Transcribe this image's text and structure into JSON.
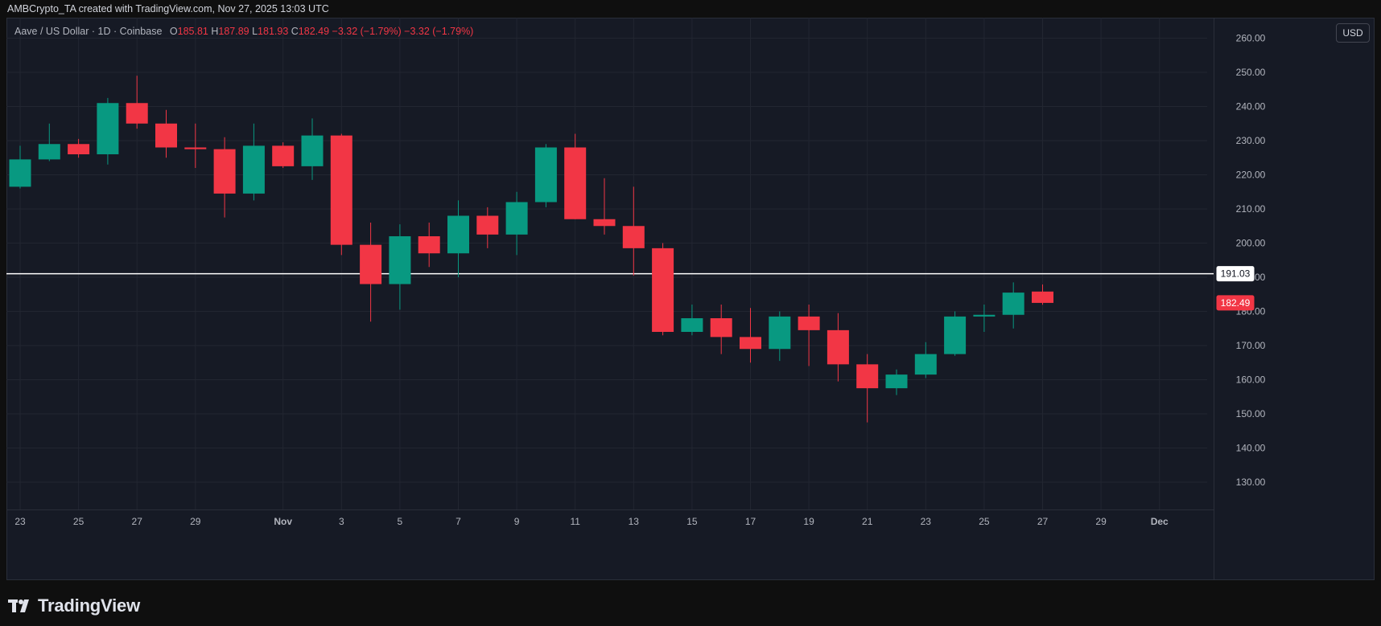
{
  "header": {
    "attribution": "AMBCrypto_TA created with TradingView.com, Nov 27, 2025 13:03 UTC"
  },
  "legend": {
    "symbol": "Aave / US Dollar · 1D · Coinbase",
    "o_label": "O",
    "o_value": "185.81",
    "h_label": "H",
    "h_value": "187.89",
    "l_label": "L",
    "l_value": "181.93",
    "c_label": "C",
    "c_value": "182.49",
    "change": "−3.32 (−1.79%)",
    "change2": "−3.32 (−1.79%)"
  },
  "currency_button": "USD",
  "footer": {
    "brand": "TradingView"
  },
  "colors": {
    "up": "#089981",
    "down": "#f23645",
    "background": "#161a25",
    "grid": "#222631",
    "line": "#ffffff"
  },
  "chart_data": {
    "type": "candlestick",
    "title": "Aave / US Dollar · 1D · Coinbase",
    "currency": "USD",
    "ylim": [
      122,
      266
    ],
    "y_ticks": [
      "130.00",
      "140.00",
      "150.00",
      "160.00",
      "170.00",
      "180.00",
      "190.00",
      "200.00",
      "210.00",
      "220.00",
      "230.00",
      "240.00",
      "250.00",
      "260.00"
    ],
    "y_tick_values": [
      130,
      140,
      150,
      160,
      170,
      180,
      190,
      200,
      210,
      220,
      230,
      240,
      250,
      260
    ],
    "x_ticks": [
      "23",
      "25",
      "27",
      "29",
      "Nov",
      "3",
      "5",
      "7",
      "9",
      "11",
      "13",
      "15",
      "17",
      "19",
      "21",
      "23",
      "25",
      "27",
      "29",
      "Dec"
    ],
    "x_tick_days": [
      0,
      2,
      4,
      6,
      9,
      11,
      13,
      15,
      17,
      19,
      21,
      23,
      25,
      27,
      29,
      31,
      33,
      35,
      37,
      39
    ],
    "grid": true,
    "dates": [
      "Oct 23",
      "Oct 24",
      "Oct 25",
      "Oct 26",
      "Oct 27",
      "Oct 28",
      "Oct 29",
      "Oct 30",
      "Oct 31",
      "Nov 1",
      "Nov 2",
      "Nov 3",
      "Nov 4",
      "Nov 5",
      "Nov 6",
      "Nov 7",
      "Nov 8",
      "Nov 9",
      "Nov 10",
      "Nov 11",
      "Nov 12",
      "Nov 13",
      "Nov 14",
      "Nov 15",
      "Nov 16",
      "Nov 17",
      "Nov 18",
      "Nov 19",
      "Nov 20",
      "Nov 21",
      "Nov 22",
      "Nov 23",
      "Nov 24",
      "Nov 25",
      "Nov 26",
      "Nov 27"
    ],
    "open": [
      216.5,
      224.5,
      229.0,
      226.0,
      241.0,
      235.0,
      228.0,
      227.5,
      214.5,
      228.5,
      222.5,
      231.5,
      199.5,
      188.0,
      202.0,
      197.0,
      208.0,
      202.5,
      212.0,
      228.0,
      207.0,
      205.0,
      198.5,
      174.0,
      178.0,
      172.5,
      169.0,
      178.5,
      174.5,
      164.5,
      157.5,
      161.5,
      167.5,
      178.5,
      179.0,
      185.81
    ],
    "high": [
      228.5,
      235.0,
      230.5,
      242.5,
      249.0,
      239.0,
      235.0,
      231.0,
      235.0,
      229.5,
      236.5,
      232.0,
      206.0,
      205.5,
      206.0,
      212.5,
      210.5,
      215.0,
      229.0,
      232.0,
      219.0,
      216.5,
      200.0,
      182.0,
      182.0,
      181.0,
      180.0,
      182.0,
      179.5,
      167.5,
      163.0,
      171.0,
      180.0,
      182.0,
      188.5,
      187.89
    ],
    "low": [
      216.0,
      224.0,
      225.0,
      223.0,
      233.5,
      225.0,
      222.0,
      207.5,
      212.5,
      222.0,
      218.5,
      196.5,
      177.0,
      180.5,
      193.0,
      190.0,
      198.5,
      196.5,
      210.5,
      207.0,
      202.5,
      190.5,
      173.0,
      173.0,
      167.5,
      165.0,
      165.5,
      164.0,
      159.5,
      147.5,
      155.5,
      160.5,
      167.0,
      174.0,
      175.0,
      181.93
    ],
    "close": [
      224.5,
      229.0,
      226.0,
      241.0,
      235.0,
      228.0,
      227.5,
      214.5,
      228.5,
      222.5,
      231.5,
      199.5,
      188.0,
      202.0,
      197.0,
      208.0,
      202.5,
      212.0,
      228.0,
      207.0,
      205.0,
      198.5,
      174.0,
      178.0,
      172.5,
      169.0,
      178.5,
      174.5,
      164.5,
      157.5,
      161.5,
      167.5,
      178.5,
      179.0,
      185.5,
      182.49
    ],
    "horizontal_line": {
      "value": 191.03,
      "label": "191.03"
    },
    "last_price": {
      "value": 182.49,
      "label": "182.49"
    }
  }
}
